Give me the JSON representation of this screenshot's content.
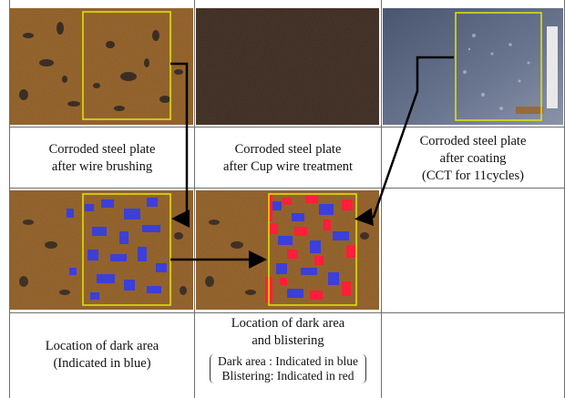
{
  "captions": {
    "plate1": [
      "Corroded steel plate",
      "after wire brushing"
    ],
    "plate2": [
      "Corroded steel plate",
      "after Cup wire treatment"
    ],
    "plate3": [
      "Corroded steel plate",
      "after coating",
      "(CCT for 11cycles)"
    ],
    "analysis1": [
      "Location of dark area",
      "(Indicated in blue)"
    ],
    "analysis2_title": [
      "Location of dark area",
      "and blistering"
    ],
    "analysis2_legend": [
      "Dark area : Indicated in blue",
      "Blistering: Indicated in red"
    ]
  },
  "images": {
    "plate1": "corroded-steel-plate-wire-brushed-photo",
    "plate2": "corroded-steel-plate-cup-wire-photo",
    "plate3": "coated-steel-plate-photo",
    "analysis1": "dark-area-map-blue-photo",
    "analysis2": "dark-area-blistering-map-photo"
  },
  "colors": {
    "rust": "#9a6326",
    "dark_rust": "#2e2118",
    "coated": "#5e6a82",
    "roi_box": "#e6e600",
    "dark_area": "#3c3fd8",
    "blistering": "#ff1f3a",
    "arrow": "#000000"
  }
}
